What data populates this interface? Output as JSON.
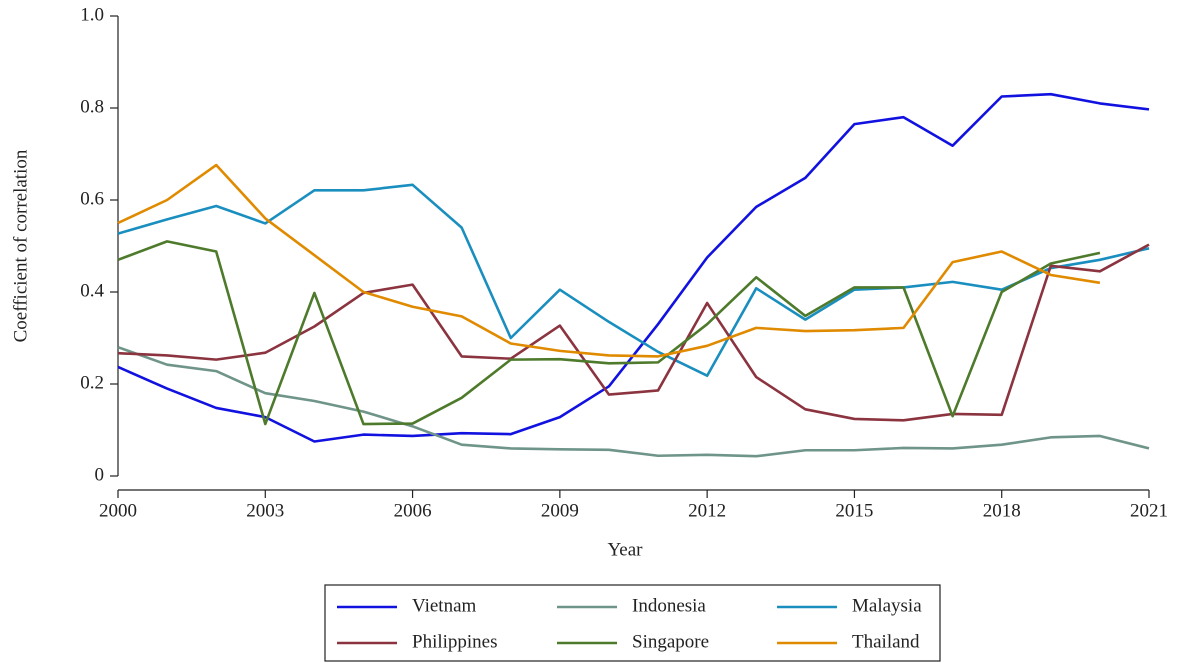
{
  "chart_data": {
    "type": "line",
    "x_label": "Year",
    "y_label": "Coefficient of correlation",
    "x": [
      2000,
      2001,
      2002,
      2003,
      2004,
      2005,
      2006,
      2007,
      2008,
      2009,
      2010,
      2011,
      2012,
      2013,
      2014,
      2015,
      2016,
      2017,
      2018,
      2019,
      2020,
      2021
    ],
    "xlim": [
      2000,
      2021
    ],
    "xticks": [
      2000,
      2003,
      2006,
      2009,
      2012,
      2015,
      2018,
      2021
    ],
    "ylim": [
      0,
      1
    ],
    "yticks": [
      0,
      0.2,
      0.4,
      0.6,
      0.8,
      {
        "value": 1,
        "label": "1.0"
      }
    ],
    "grid": false,
    "legend": "bottom",
    "series": [
      {
        "name": "Vietnam",
        "color": "#1212e0",
        "values": [
          0.237,
          0.19,
          0.148,
          0.128,
          0.075,
          0.09,
          0.087,
          0.093,
          0.091,
          0.128,
          0.195,
          0.33,
          0.475,
          0.585,
          0.648,
          0.765,
          0.78,
          0.718,
          0.825,
          0.83,
          0.81,
          0.797
        ]
      },
      {
        "name": "Indonesia",
        "color": "#6f9489",
        "values": [
          0.28,
          0.242,
          0.228,
          0.18,
          0.163,
          0.14,
          0.108,
          0.068,
          0.06,
          0.058,
          0.057,
          0.044,
          0.046,
          0.043,
          0.056,
          0.056,
          0.061,
          0.06,
          0.068,
          0.084,
          0.087,
          0.06
        ]
      },
      {
        "name": "Malaysia",
        "color": "#1a8fbf",
        "values": [
          0.527,
          0.558,
          0.587,
          0.549,
          0.621,
          0.621,
          0.633,
          0.54,
          0.3,
          0.405,
          0.335,
          0.27,
          0.218,
          0.408,
          0.34,
          0.405,
          0.41,
          0.422,
          0.405,
          0.452,
          0.47,
          0.495
        ]
      },
      {
        "name": "Philippines",
        "color": "#8b3440",
        "values": [
          0.267,
          0.262,
          0.253,
          0.268,
          0.325,
          0.398,
          0.416,
          0.26,
          0.255,
          0.327,
          0.177,
          0.186,
          0.376,
          0.215,
          0.145,
          0.124,
          0.121,
          0.135,
          0.133,
          0.457,
          0.445,
          0.503
        ]
      },
      {
        "name": "Singapore",
        "color": "#4e7a2c",
        "values": [
          0.47,
          0.51,
          0.488,
          0.113,
          0.398,
          0.113,
          0.114,
          0.17,
          0.253,
          0.254,
          0.245,
          0.247,
          0.33,
          0.432,
          0.348,
          0.41,
          0.41,
          0.13,
          0.4,
          0.462,
          0.485,
          null
        ]
      },
      {
        "name": "Thailand",
        "color": "#e08a00",
        "values": [
          0.55,
          0.6,
          0.676,
          0.56,
          0.48,
          0.4,
          0.368,
          0.347,
          0.288,
          0.272,
          0.262,
          0.26,
          0.283,
          0.322,
          0.315,
          0.317,
          0.322,
          0.465,
          0.488,
          0.437,
          0.42,
          null
        ]
      }
    ]
  }
}
